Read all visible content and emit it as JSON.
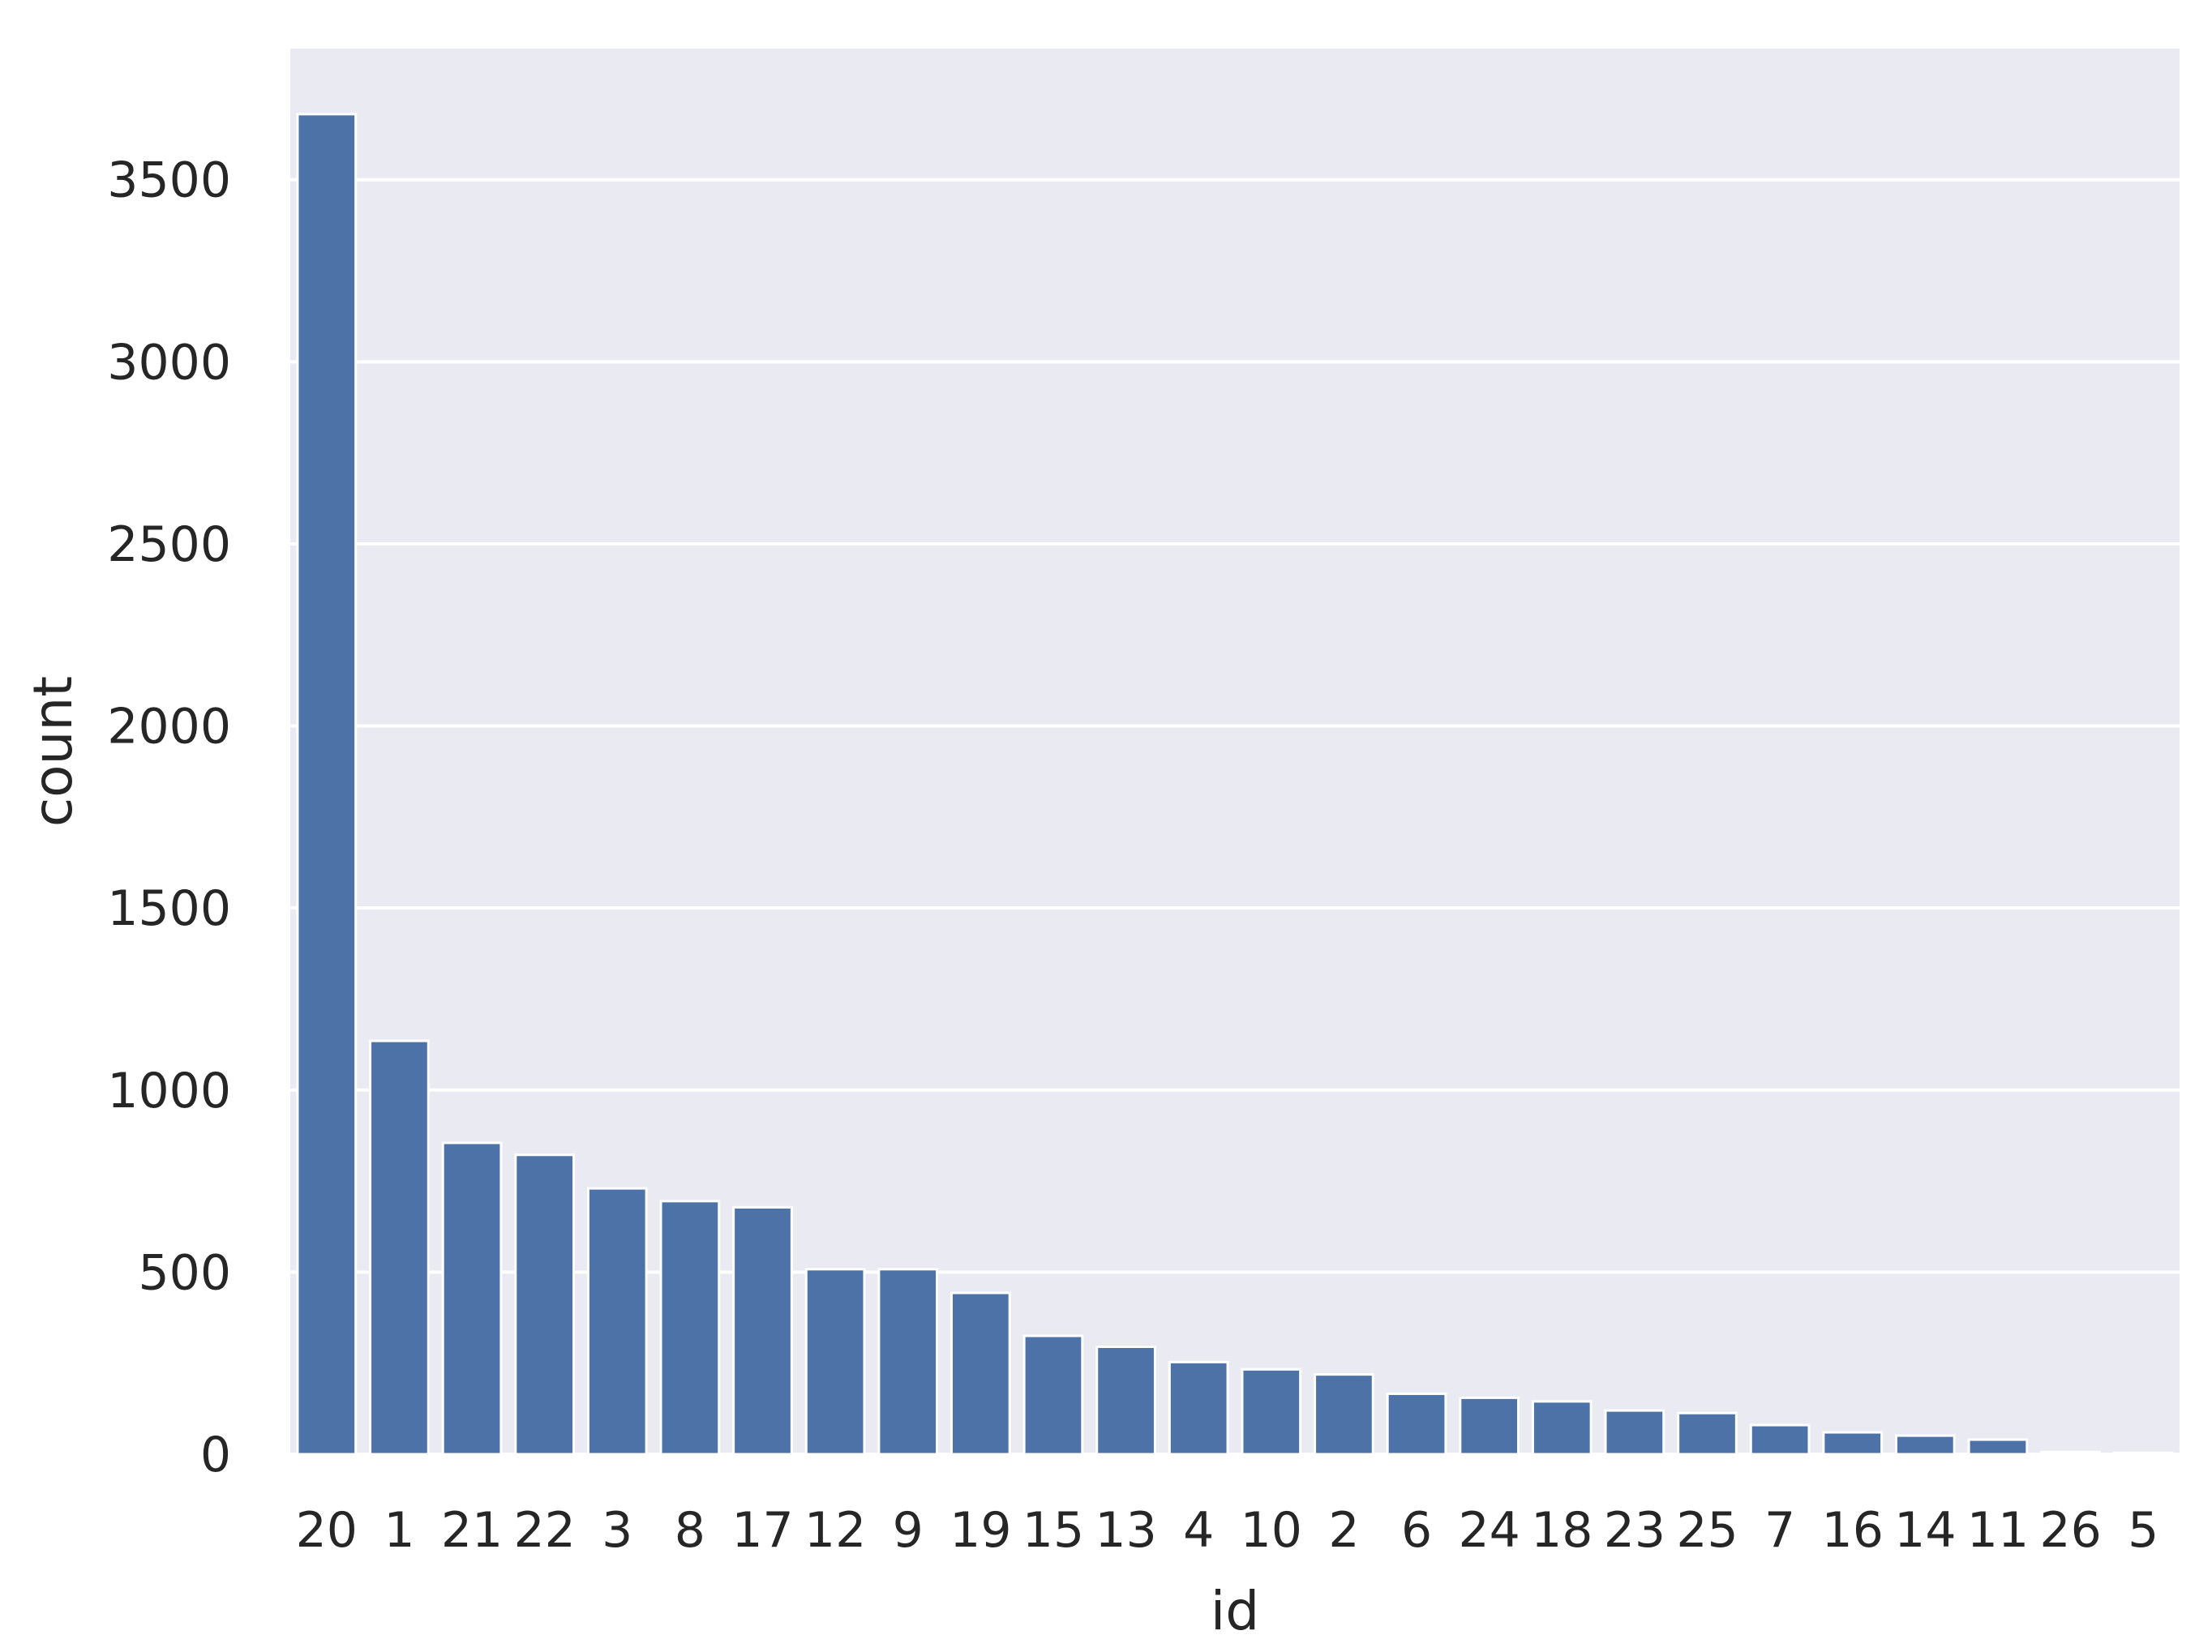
{
  "chart_data": {
    "type": "bar",
    "categories": [
      "20",
      "1",
      "21",
      "22",
      "3",
      "8",
      "17",
      "12",
      "9",
      "19",
      "15",
      "13",
      "4",
      "10",
      "2",
      "6",
      "24",
      "18",
      "23",
      "25",
      "7",
      "16",
      "14",
      "11",
      "26",
      "5"
    ],
    "values": [
      3680,
      1135,
      855,
      822,
      730,
      695,
      678,
      508,
      508,
      443,
      325,
      295,
      253,
      233,
      219,
      166,
      155,
      145,
      120,
      113,
      80,
      60,
      51,
      40,
      6,
      4
    ],
    "yticks": [
      "0",
      "500",
      "1000",
      "1500",
      "2000",
      "2500",
      "3000",
      "3500"
    ],
    "ylim": [
      0,
      3860
    ],
    "title": "",
    "xlabel": "id",
    "ylabel": "count",
    "grid": true,
    "colors": {
      "bar": "#4c72a8",
      "plot_bg": "#eaeaf2",
      "grid": "#ffffff"
    }
  }
}
